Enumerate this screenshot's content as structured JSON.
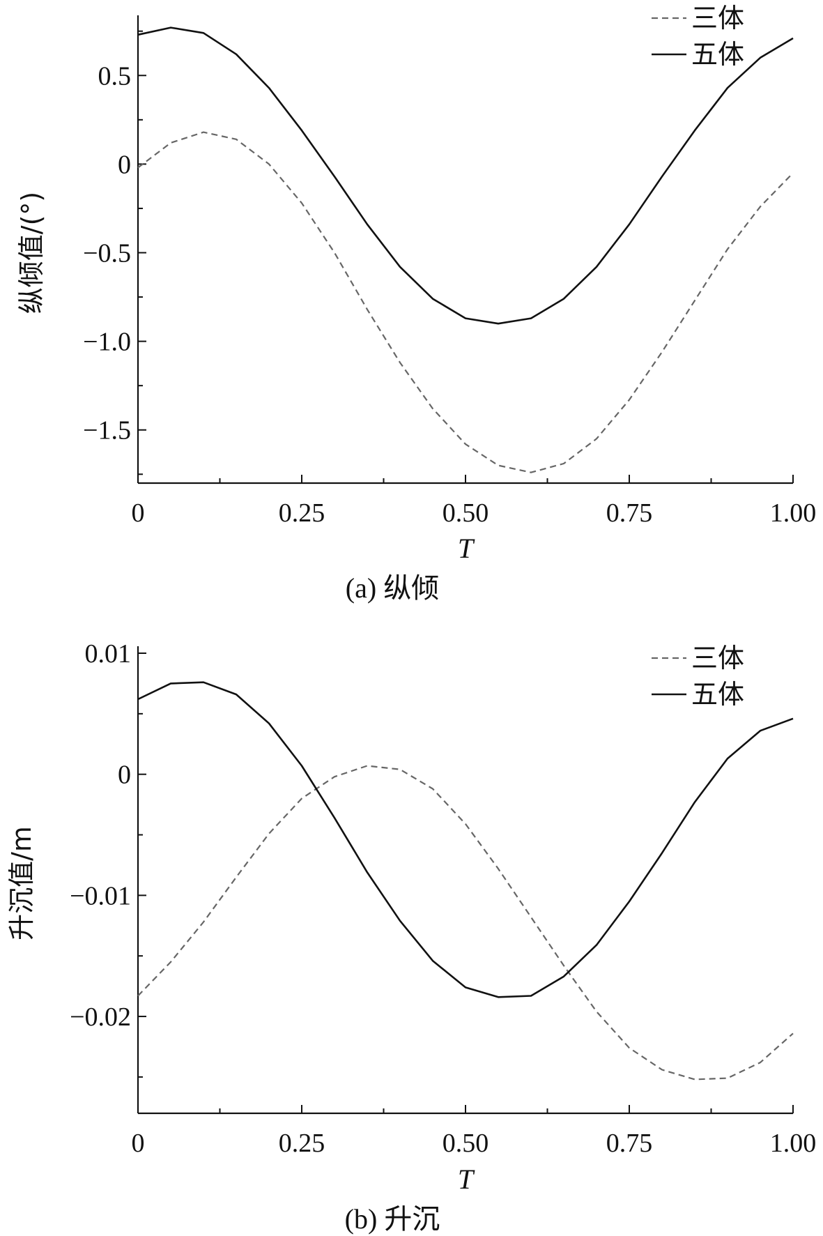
{
  "chart_data": [
    {
      "type": "line",
      "caption": "(a) 纵倾",
      "xlabel": "T",
      "ylabel": "纵倾值/(°)",
      "xlim": [
        0,
        1.0
      ],
      "ylim": [
        -1.8,
        0.8
      ],
      "xticks": [
        0,
        0.25,
        0.5,
        0.75,
        1.0
      ],
      "xtick_labels": [
        "0",
        "0.25",
        "0.50",
        "0.75",
        "1.00"
      ],
      "yticks": [
        0.5,
        0,
        -0.5,
        -1.0,
        -1.5
      ],
      "ytick_labels": [
        "0.5",
        "0",
        "−0.5",
        "−1.0",
        "−1.5"
      ],
      "legend_position": "top-right",
      "grid": false,
      "series": [
        {
          "name": "三体",
          "style": "dashed",
          "color": "#666666",
          "x": [
            0,
            0.05,
            0.1,
            0.15,
            0.2,
            0.25,
            0.3,
            0.35,
            0.4,
            0.45,
            0.5,
            0.55,
            0.6,
            0.65,
            0.7,
            0.75,
            0.8,
            0.85,
            0.9,
            0.95,
            1.0
          ],
          "y": [
            -0.02,
            0.12,
            0.18,
            0.14,
            0.0,
            -0.22,
            -0.5,
            -0.82,
            -1.12,
            -1.38,
            -1.58,
            -1.7,
            -1.74,
            -1.69,
            -1.55,
            -1.33,
            -1.06,
            -0.77,
            -0.48,
            -0.24,
            -0.05
          ]
        },
        {
          "name": "五体",
          "style": "solid",
          "color": "#111111",
          "x": [
            0,
            0.05,
            0.1,
            0.15,
            0.2,
            0.25,
            0.3,
            0.35,
            0.4,
            0.45,
            0.5,
            0.55,
            0.6,
            0.65,
            0.7,
            0.75,
            0.8,
            0.85,
            0.9,
            0.95,
            1.0
          ],
          "y": [
            0.73,
            0.77,
            0.74,
            0.62,
            0.43,
            0.19,
            -0.07,
            -0.34,
            -0.58,
            -0.76,
            -0.87,
            -0.9,
            -0.87,
            -0.76,
            -0.58,
            -0.34,
            -0.07,
            0.19,
            0.43,
            0.6,
            0.71
          ]
        }
      ]
    },
    {
      "type": "line",
      "caption": "(b) 升沉",
      "xlabel": "T",
      "ylabel": "升沉值/m",
      "xlim": [
        0,
        1.0
      ],
      "ylim": [
        -0.028,
        0.01
      ],
      "xticks": [
        0,
        0.25,
        0.5,
        0.75,
        1.0
      ],
      "xtick_labels": [
        "0",
        "0.25",
        "0.50",
        "0.75",
        "1.00"
      ],
      "yticks": [
        0.01,
        0,
        -0.01,
        -0.02
      ],
      "ytick_labels": [
        "0.01",
        "0",
        "−0.01",
        "−0.02"
      ],
      "legend_position": "top-right",
      "grid": false,
      "series": [
        {
          "name": "三体",
          "style": "dashed",
          "color": "#666666",
          "x": [
            0,
            0.05,
            0.1,
            0.15,
            0.2,
            0.25,
            0.3,
            0.35,
            0.4,
            0.45,
            0.5,
            0.55,
            0.6,
            0.65,
            0.7,
            0.75,
            0.8,
            0.85,
            0.9,
            0.95,
            1.0
          ],
          "y": [
            -0.0183,
            -0.0155,
            -0.0122,
            -0.0085,
            -0.0049,
            -0.002,
            -0.0002,
            0.0007,
            0.0004,
            -0.0012,
            -0.0041,
            -0.0078,
            -0.0118,
            -0.0158,
            -0.0196,
            -0.0226,
            -0.0244,
            -0.0252,
            -0.0251,
            -0.0238,
            -0.0214
          ]
        },
        {
          "name": "五体",
          "style": "solid",
          "color": "#111111",
          "x": [
            0,
            0.05,
            0.1,
            0.15,
            0.2,
            0.25,
            0.3,
            0.35,
            0.4,
            0.45,
            0.5,
            0.55,
            0.6,
            0.65,
            0.7,
            0.75,
            0.8,
            0.85,
            0.9,
            0.95,
            1.0
          ],
          "y": [
            0.0062,
            0.0075,
            0.0076,
            0.0066,
            0.0042,
            0.0007,
            -0.0036,
            -0.0081,
            -0.0121,
            -0.0154,
            -0.0176,
            -0.0184,
            -0.0183,
            -0.0167,
            -0.0141,
            -0.0105,
            -0.0065,
            -0.0023,
            0.0013,
            0.0036,
            0.0046
          ]
        }
      ]
    }
  ]
}
